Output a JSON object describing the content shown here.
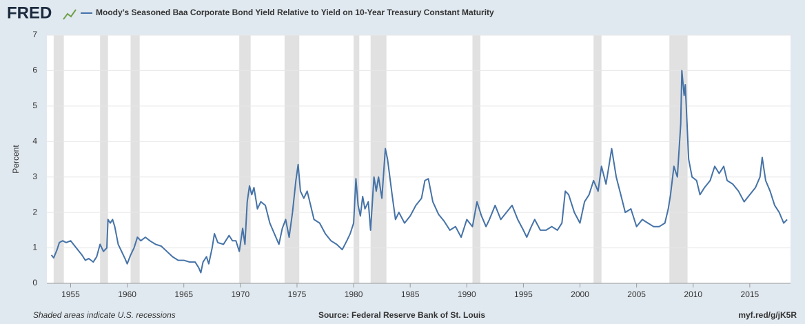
{
  "chart_data": {
    "type": "line",
    "logo": "FRED",
    "y_label": "Percent",
    "notes": "Shaded areas indicate U.S. recessions",
    "source": "Source: Federal Reserve Bank of St. Louis",
    "link": "myf.red/g/jK5R",
    "xlim": [
      1952.9,
      2018.6
    ],
    "xticks": [
      1955,
      1960,
      1965,
      1970,
      1975,
      1980,
      1985,
      1990,
      1995,
      2000,
      2005,
      2010,
      2015
    ],
    "ylim": [
      0,
      7
    ],
    "yticks": [
      0,
      1,
      2,
      3,
      4,
      5,
      6,
      7
    ],
    "grid": true,
    "recessions": [
      [
        1953.5,
        1954.4
      ],
      [
        1957.6,
        1958.3
      ],
      [
        1960.3,
        1961.1
      ],
      [
        1969.9,
        1970.9
      ],
      [
        1973.9,
        1975.2
      ],
      [
        1980.0,
        1980.5
      ],
      [
        1981.5,
        1982.9
      ],
      [
        1990.5,
        1991.2
      ],
      [
        2001.2,
        2001.9
      ],
      [
        2007.9,
        2009.5
      ]
    ],
    "x": [
      1953.3,
      1953.5,
      1953.8,
      1954.0,
      1954.3,
      1954.6,
      1955.0,
      1955.5,
      1956.0,
      1956.3,
      1956.6,
      1957.0,
      1957.3,
      1957.6,
      1957.9,
      1958.2,
      1958.3,
      1958.5,
      1958.7,
      1958.9,
      1959.2,
      1959.5,
      1959.8,
      1960.0,
      1960.3,
      1960.6,
      1960.9,
      1961.2,
      1961.6,
      1962.0,
      1962.5,
      1963.0,
      1963.5,
      1964.0,
      1964.5,
      1965.0,
      1965.5,
      1966.0,
      1966.3,
      1966.5,
      1966.7,
      1967.0,
      1967.2,
      1967.5,
      1967.7,
      1968.0,
      1968.5,
      1969.0,
      1969.3,
      1969.6,
      1969.9,
      1970.2,
      1970.4,
      1970.6,
      1970.8,
      1971.0,
      1971.2,
      1971.5,
      1971.8,
      1972.2,
      1972.6,
      1973.0,
      1973.4,
      1973.7,
      1974.0,
      1974.3,
      1974.6,
      1974.9,
      1975.1,
      1975.3,
      1975.6,
      1975.9,
      1976.2,
      1976.5,
      1977.0,
      1977.5,
      1978.0,
      1978.5,
      1979.0,
      1979.4,
      1979.7,
      1980.0,
      1980.2,
      1980.4,
      1980.6,
      1980.8,
      1981.0,
      1981.3,
      1981.5,
      1981.8,
      1982.0,
      1982.2,
      1982.5,
      1982.8,
      1983.0,
      1983.4,
      1983.7,
      1984.0,
      1984.5,
      1985.0,
      1985.5,
      1986.0,
      1986.3,
      1986.6,
      1987.0,
      1987.5,
      1988.0,
      1988.5,
      1989.0,
      1989.5,
      1990.0,
      1990.5,
      1990.9,
      1991.3,
      1991.7,
      1992.0,
      1992.5,
      1993.0,
      1993.5,
      1994.0,
      1994.5,
      1995.0,
      1995.3,
      1995.7,
      1996.0,
      1996.5,
      1997.0,
      1997.5,
      1998.0,
      1998.4,
      1998.7,
      1999.0,
      1999.5,
      2000.0,
      2000.4,
      2000.8,
      2001.2,
      2001.6,
      2001.9,
      2002.3,
      2002.8,
      2003.2,
      2003.6,
      2004.0,
      2004.5,
      2005.0,
      2005.5,
      2006.0,
      2006.5,
      2007.0,
      2007.5,
      2007.8,
      2008.0,
      2008.3,
      2008.6,
      2008.9,
      2009.0,
      2009.2,
      2009.3,
      2009.6,
      2009.9,
      2010.3,
      2010.6,
      2011.0,
      2011.5,
      2011.9,
      2012.3,
      2012.7,
      2013.0,
      2013.5,
      2014.0,
      2014.5,
      2015.0,
      2015.5,
      2015.9,
      2016.1,
      2016.4,
      2016.8,
      2017.2,
      2017.6,
      2018.0,
      2018.3
    ],
    "series": [
      {
        "name": "Moody’s Seasoned Baa Corporate Bond Yield Relative to Yield on 10-Year Treasury Constant Maturity",
        "color": "#4572a7",
        "values": [
          0.8,
          0.72,
          0.95,
          1.15,
          1.2,
          1.15,
          1.2,
          1.0,
          0.8,
          0.65,
          0.7,
          0.6,
          0.75,
          1.1,
          0.9,
          1.0,
          1.8,
          1.7,
          1.8,
          1.6,
          1.1,
          0.9,
          0.7,
          0.55,
          0.8,
          1.0,
          1.3,
          1.2,
          1.3,
          1.2,
          1.1,
          1.05,
          0.9,
          0.75,
          0.65,
          0.65,
          0.6,
          0.6,
          0.45,
          0.3,
          0.6,
          0.75,
          0.55,
          1.0,
          1.4,
          1.15,
          1.1,
          1.35,
          1.2,
          1.2,
          0.9,
          1.55,
          1.1,
          2.3,
          2.75,
          2.5,
          2.7,
          2.1,
          2.3,
          2.2,
          1.7,
          1.4,
          1.1,
          1.55,
          1.8,
          1.3,
          2.0,
          2.9,
          3.35,
          2.6,
          2.4,
          2.6,
          2.2,
          1.8,
          1.7,
          1.4,
          1.2,
          1.1,
          0.95,
          1.2,
          1.4,
          1.7,
          2.95,
          2.2,
          1.9,
          2.45,
          2.1,
          2.3,
          1.5,
          3.0,
          2.6,
          3.0,
          2.4,
          3.8,
          3.5,
          2.5,
          1.8,
          2.0,
          1.7,
          1.9,
          2.2,
          2.4,
          2.9,
          2.95,
          2.3,
          1.95,
          1.75,
          1.5,
          1.6,
          1.3,
          1.8,
          1.6,
          2.3,
          1.9,
          1.6,
          1.8,
          2.2,
          1.8,
          2.0,
          2.2,
          1.8,
          1.5,
          1.3,
          1.6,
          1.8,
          1.5,
          1.5,
          1.6,
          1.5,
          1.7,
          2.6,
          2.5,
          2.0,
          1.7,
          2.3,
          2.5,
          2.9,
          2.6,
          3.3,
          2.8,
          3.8,
          3.0,
          2.5,
          2.0,
          2.1,
          1.6,
          1.8,
          1.7,
          1.6,
          1.6,
          1.7,
          2.1,
          2.5,
          3.3,
          3.0,
          4.5,
          6.0,
          5.3,
          5.6,
          3.5,
          3.0,
          2.9,
          2.5,
          2.7,
          2.9,
          3.3,
          3.1,
          3.3,
          2.9,
          2.8,
          2.6,
          2.3,
          2.5,
          2.7,
          3.0,
          3.55,
          2.9,
          2.6,
          2.2,
          2.0,
          1.7,
          1.8
        ]
      }
    ]
  }
}
